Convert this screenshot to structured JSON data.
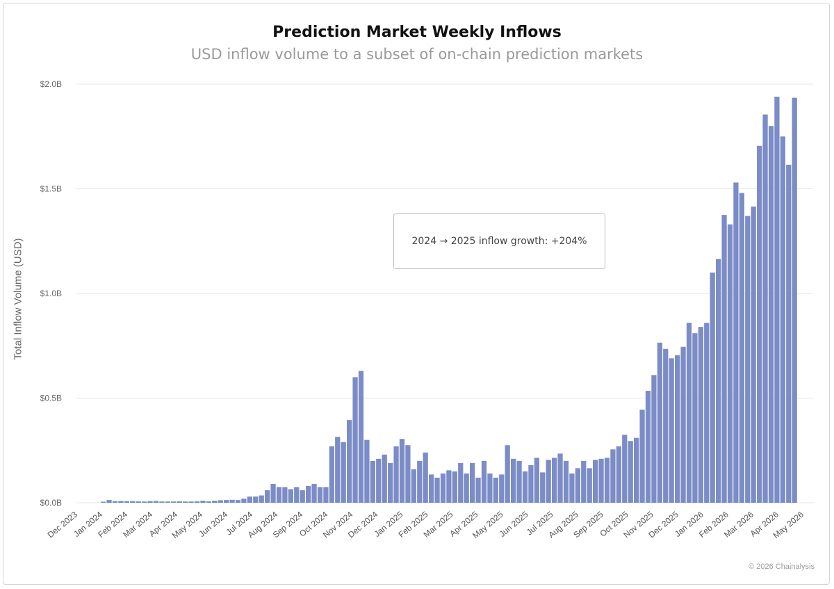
{
  "chart_data": {
    "type": "bar",
    "title": "Prediction Market Weekly Inflows",
    "subtitle": "USD inflow volume to a subset of on-chain prediction markets",
    "ylabel": "Total Inflow Volume (USD)",
    "xlabel": "",
    "ylim": [
      0,
      2.0
    ],
    "y_unit": "B",
    "y_ticks": [
      {
        "value": 0.0,
        "label": "$0.0B"
      },
      {
        "value": 0.5,
        "label": "$0.5B"
      },
      {
        "value": 1.0,
        "label": "$1.0B"
      },
      {
        "value": 1.5,
        "label": "$1.5B"
      },
      {
        "value": 2.0,
        "label": "$2.0B"
      }
    ],
    "x_ticks": [
      "Dec 2023",
      "Jan 2024",
      "Feb 2024",
      "Mar 2024",
      "Apr 2024",
      "May 2024",
      "Jun 2024",
      "Jul 2024",
      "Aug 2024",
      "Sep 2024",
      "Oct 2024",
      "Nov 2024",
      "Dec 2024",
      "Jan 2025",
      "Feb 2025",
      "Mar 2025",
      "Apr 2025",
      "May 2025",
      "Jun 2025",
      "Jul 2025",
      "Aug 2025",
      "Sep 2025",
      "Oct 2025",
      "Nov 2025",
      "Dec 2025",
      "Jan 2026",
      "Feb 2026",
      "Mar 2026",
      "Apr 2026",
      "May 2026"
    ],
    "grid": true,
    "bar_color": "#7b8cc6",
    "values": [
      0.005,
      0.013,
      0.008,
      0.009,
      0.008,
      0.008,
      0.007,
      0.006,
      0.008,
      0.009,
      0.006,
      0.006,
      0.006,
      0.007,
      0.006,
      0.006,
      0.007,
      0.01,
      0.007,
      0.01,
      0.012,
      0.013,
      0.014,
      0.013,
      0.02,
      0.03,
      0.03,
      0.035,
      0.06,
      0.09,
      0.075,
      0.075,
      0.065,
      0.075,
      0.06,
      0.08,
      0.09,
      0.075,
      0.075,
      0.27,
      0.315,
      0.29,
      0.395,
      0.6,
      0.63,
      0.3,
      0.2,
      0.21,
      0.23,
      0.19,
      0.27,
      0.305,
      0.275,
      0.16,
      0.2,
      0.24,
      0.135,
      0.12,
      0.14,
      0.155,
      0.15,
      0.19,
      0.14,
      0.19,
      0.12,
      0.2,
      0.14,
      0.12,
      0.135,
      0.275,
      0.21,
      0.2,
      0.15,
      0.18,
      0.215,
      0.145,
      0.205,
      0.215,
      0.235,
      0.2,
      0.14,
      0.165,
      0.2,
      0.165,
      0.205,
      0.21,
      0.215,
      0.255,
      0.27,
      0.325,
      0.295,
      0.31,
      0.445,
      0.535,
      0.61,
      0.765,
      0.735,
      0.69,
      0.705,
      0.745,
      0.86,
      0.81,
      0.84,
      0.86,
      1.1,
      1.165,
      1.375,
      1.33,
      1.53,
      1.48,
      1.37,
      1.415,
      1.705,
      1.855,
      1.8,
      1.94,
      1.75,
      1.615,
      1.935
    ]
  },
  "annotation": "2024 → 2025 inflow growth: +204%",
  "credit": "© 2026 Chainalysis"
}
